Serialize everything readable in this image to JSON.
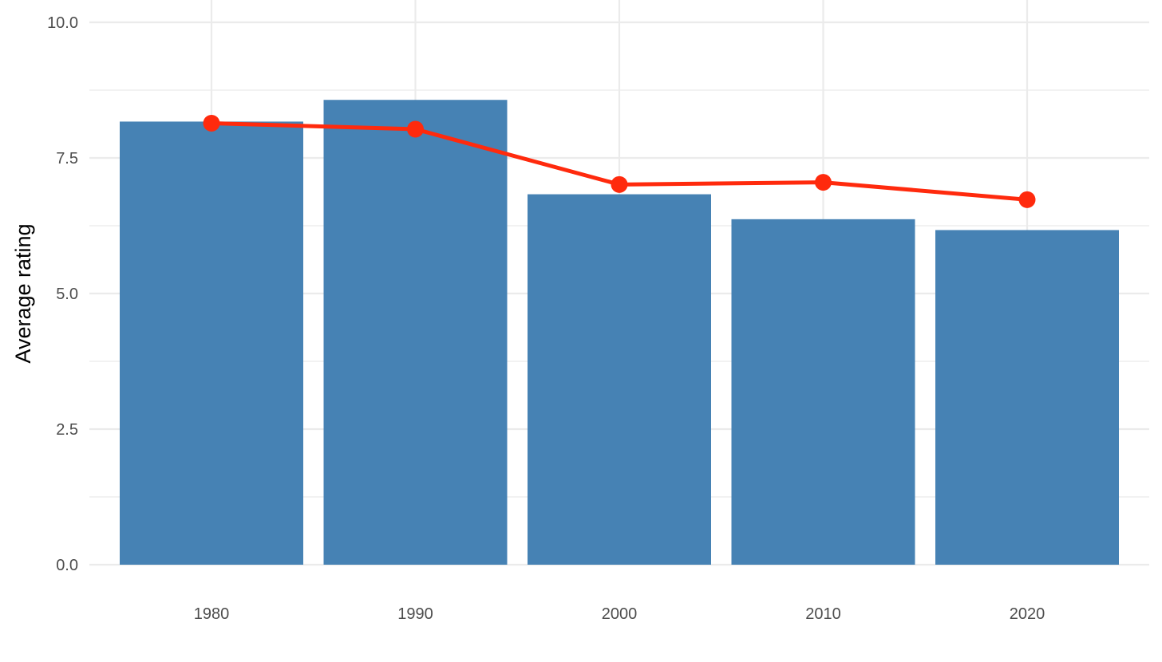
{
  "chart_data": {
    "type": "bar",
    "categories": [
      "1980",
      "1990",
      "2000",
      "2010",
      "2020"
    ],
    "series": [
      {
        "type": "bar",
        "values": [
          8.17,
          8.57,
          6.83,
          6.37,
          6.17
        ]
      },
      {
        "type": "line",
        "values": [
          8.14,
          8.03,
          7.01,
          7.05,
          6.73
        ]
      }
    ],
    "title": "",
    "xlabel": "",
    "ylabel": "Average rating",
    "ylim": [
      0,
      10
    ],
    "yticks": [
      0,
      2.5,
      5,
      7.5,
      10
    ],
    "ytick_labels": [
      "0.0",
      "2.5",
      "5.0",
      "7.5",
      "10.0"
    ],
    "grid": true,
    "legend": "none",
    "colors": {
      "bar": "#4682B4",
      "line": "#FF2A0D",
      "grid": "#EBEBEB",
      "tick_text": "#4D4D4D",
      "axis_title": "#000000"
    }
  }
}
